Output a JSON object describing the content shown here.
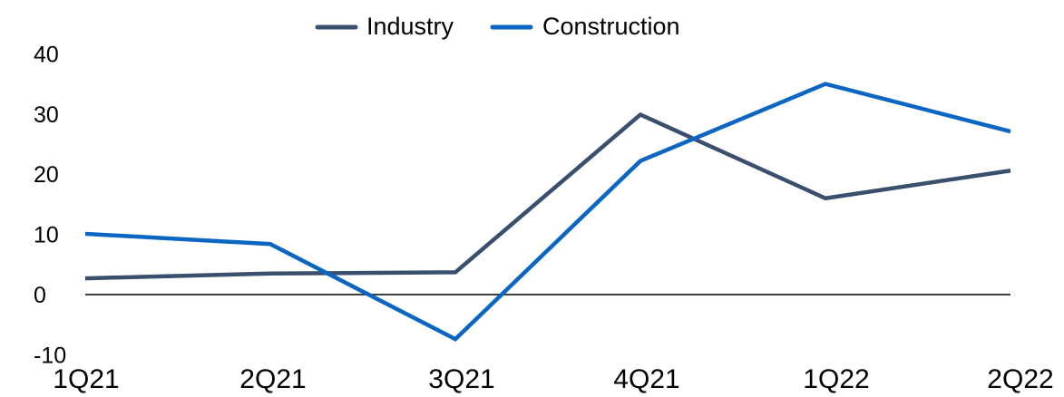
{
  "chart_data": {
    "type": "line",
    "categories": [
      "1Q21",
      "2Q21",
      "3Q21",
      "4Q21",
      "1Q22",
      "2Q22"
    ],
    "series": [
      {
        "name": "Industry",
        "values": [
          2.7,
          3.5,
          3.7,
          29.9,
          16.0,
          20.6
        ],
        "color": "#3a4f6e"
      },
      {
        "name": "Construction",
        "values": [
          10.1,
          8.4,
          -7.4,
          22.2,
          35.0,
          27.1
        ],
        "color": "#0a66c2"
      }
    ],
    "yticks": [
      "40",
      "30",
      "20",
      "10",
      "0",
      "-10"
    ],
    "ytick_values": [
      40,
      30,
      20,
      10,
      0,
      -10
    ],
    "ylim": [
      -10,
      40
    ],
    "title": "",
    "xlabel": "",
    "ylabel": "",
    "grid": false,
    "zero_line": true,
    "legend_position": "top-center"
  }
}
